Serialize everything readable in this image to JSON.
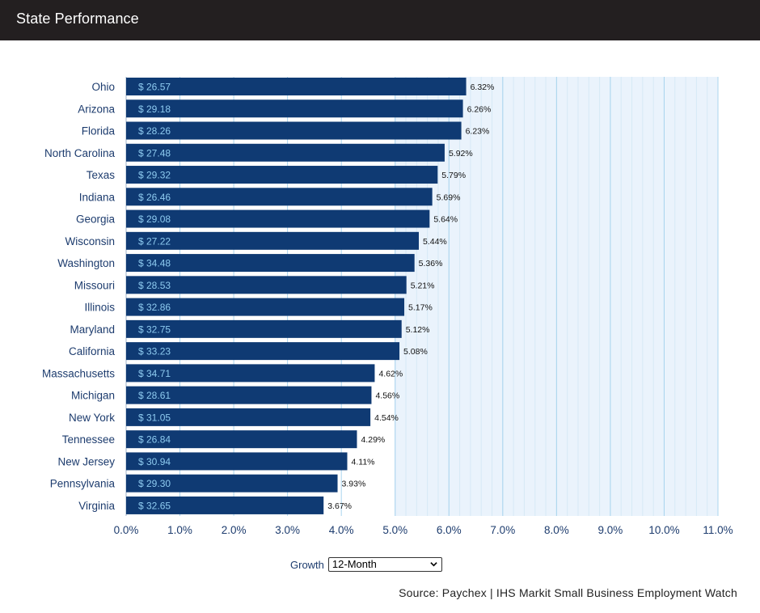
{
  "header": {
    "title": "State Performance"
  },
  "controls": {
    "growth_label": "Growth",
    "growth_selected": "12-Month"
  },
  "source": "Source: Paychex | IHS Markit Small Business Employment Watch",
  "colors": {
    "bar": "#0f3a73",
    "wage_label": "#8ecbf0",
    "category_label": "#1d3c6e",
    "tick_label": "#1d3c6e",
    "grid_major": "#a9d4ee",
    "grid_minor": "#d6e9f6",
    "shade": "#eaf3fc"
  },
  "chart_data": {
    "type": "bar",
    "orientation": "horizontal",
    "categories": [
      "Ohio",
      "Arizona",
      "Florida",
      "North Carolina",
      "Texas",
      "Indiana",
      "Georgia",
      "Wisconsin",
      "Washington",
      "Missouri",
      "Illinois",
      "Maryland",
      "California",
      "Massachusetts",
      "Michigan",
      "New York",
      "Tennessee",
      "New Jersey",
      "Pennsylvania",
      "Virginia"
    ],
    "values": [
      6.32,
      6.26,
      6.23,
      5.92,
      5.79,
      5.69,
      5.64,
      5.44,
      5.36,
      5.21,
      5.17,
      5.12,
      5.08,
      4.62,
      4.56,
      4.54,
      4.29,
      4.11,
      3.93,
      3.67
    ],
    "value_labels": [
      "6.32%",
      "6.26%",
      "6.23%",
      "5.92%",
      "5.79%",
      "5.69%",
      "5.64%",
      "5.44%",
      "5.36%",
      "5.21%",
      "5.17%",
      "5.12%",
      "5.08%",
      "4.62%",
      "4.56%",
      "4.54%",
      "4.29%",
      "4.11%",
      "3.93%",
      "3.67%"
    ],
    "wage_labels": [
      "$ 26.57",
      "$ 29.18",
      "$ 28.26",
      "$ 27.48",
      "$ 29.32",
      "$ 26.46",
      "$ 29.08",
      "$ 27.22",
      "$ 34.48",
      "$ 28.53",
      "$ 32.86",
      "$ 32.75",
      "$ 33.23",
      "$ 34.71",
      "$ 28.61",
      "$ 31.05",
      "$ 26.84",
      "$ 30.94",
      "$ 29.30",
      "$ 32.65"
    ],
    "xlim": [
      0,
      11
    ],
    "x_ticks": [
      0,
      1,
      2,
      3,
      4,
      5,
      6,
      7,
      8,
      9,
      10,
      11
    ],
    "x_tick_labels": [
      "0.0%",
      "1.0%",
      "2.0%",
      "3.0%",
      "4.0%",
      "5.0%",
      "6.0%",
      "7.0%",
      "8.0%",
      "9.0%",
      "10.0%",
      "11.0%"
    ],
    "shaded_range": [
      5,
      11
    ],
    "grid": true,
    "title": "State Performance",
    "xlabel": "",
    "ylabel": ""
  }
}
